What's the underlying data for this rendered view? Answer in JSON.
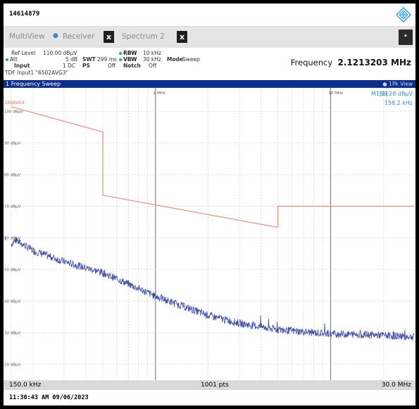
{
  "device_id": "14614879",
  "tabs": [
    {
      "label": "MultiView",
      "close": "x"
    },
    {
      "label": "Receiver"
    },
    {
      "label": "Spectrum 2",
      "close": "x"
    }
  ],
  "menu_glyph": "•",
  "params": {
    "ref_level_label": "Ref Level",
    "ref_level_value": "110.00 dBµV",
    "att_label": "Att",
    "att_value": "5 dB",
    "swt_label": "SWT",
    "swt_value": "299 ms",
    "input_label": "Input",
    "input_value": "1 DC",
    "ps_label": "PS",
    "ps_value": "Off",
    "rbw_label": "RBW",
    "rbw_value": "10 kHz",
    "vbw_label": "VBW",
    "vbw_value": "30 kHz",
    "mode_label": "Mode",
    "mode_value": "Sweep",
    "notch_label": "Notch",
    "notch_value": "Off",
    "tdf_text": "TDF Input1 \"6502AVG3\""
  },
  "frequency_label": "Frequency",
  "frequency_value": "2.1213203 MHz",
  "window_title": "1 Frequency Sweep",
  "window_view": "● 1Pk View",
  "marker": {
    "label": "M1[1]",
    "level": "59.28 dBµV",
    "freq": "158.2 kHz"
  },
  "bottom": {
    "start": "150.0 kHz",
    "points": "1001 pts",
    "stop": "30.0 MHz"
  },
  "timestamp": "11:30:43 AM  09/06/2023",
  "colors": {
    "trace": "#3a4aa8",
    "limit": "#f08a7a",
    "title_bar": "#0b2e8f",
    "grid": "#c8c8c8"
  },
  "chart_data": {
    "type": "line",
    "x_scale": "log",
    "xlim_hz": [
      150000,
      30000000
    ],
    "ylim": [
      15,
      107
    ],
    "y_ticks": [
      "100 dBµV",
      "90 dBµV",
      "80 dBµV",
      "70 dBµV",
      "60 dBµV",
      "50 dBµV",
      "40 dBµV",
      "30 dBµV",
      "20 dBµV"
    ],
    "y_tick_values": [
      100,
      90,
      80,
      70,
      60,
      50,
      40,
      30,
      20
    ],
    "x_tick_labels": [
      {
        "label": "1 MHz",
        "value": 1000000
      },
      {
        "label": "10 MHz",
        "value": 10000000
      }
    ],
    "limit_line": {
      "name": "22QAVG3",
      "points": [
        [
          150000,
          101.5
        ],
        [
          500000,
          93.5
        ],
        [
          500000,
          73.5
        ],
        [
          4800000,
          63.5
        ],
        [
          5000000,
          63.5
        ],
        [
          5000000,
          70
        ],
        [
          30000000,
          70
        ]
      ]
    },
    "trace": {
      "name": "1",
      "points": [
        [
          150000,
          58
        ],
        [
          158200,
          59.28
        ],
        [
          200000,
          56
        ],
        [
          300000,
          52.5
        ],
        [
          500000,
          49
        ],
        [
          800000,
          44
        ],
        [
          1000000,
          41.5
        ],
        [
          1500000,
          38
        ],
        [
          2000000,
          35.5
        ],
        [
          3000000,
          33
        ],
        [
          5000000,
          31
        ],
        [
          8000000,
          30
        ],
        [
          10000000,
          29.7
        ],
        [
          20000000,
          29.2
        ],
        [
          30000000,
          28.7
        ]
      ]
    }
  }
}
